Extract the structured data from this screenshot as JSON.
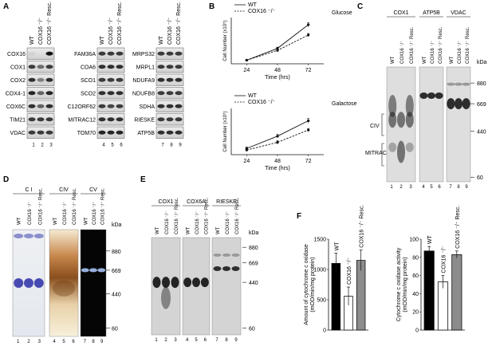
{
  "panels": {
    "A": {
      "letter": "A",
      "col_groups": [
        [
          "WT",
          "COX16 ⁻/⁻",
          "COX16 ⁻/⁻ Resc."
        ],
        [
          "WT",
          "COX16 ⁻/⁻",
          "COX16 ⁻/⁻ Resc."
        ],
        [
          "WT",
          "COX16 ⁻/⁻",
          "COX16 ⁻/⁻ Resc."
        ]
      ],
      "blot1_labels": [
        "COX16",
        "COX1",
        "COX2",
        "COX4-1",
        "COX6C",
        "TIM21",
        "VDAC"
      ],
      "blot2_labels": [
        "FAM36A",
        "COA6",
        "SCO1",
        "SCO2",
        "C12ORF62",
        "MITRAC12",
        "TOM70"
      ],
      "blot3_labels": [
        "MRPS32",
        "MRPL1",
        "NDUFA9",
        "NDUFB8",
        "SDHA",
        "RIESKE",
        "ATP5B"
      ],
      "lanes": [
        [
          "1",
          "2",
          "3"
        ],
        [
          "4",
          "5",
          "6"
        ],
        [
          "7",
          "8",
          "9"
        ]
      ]
    },
    "B": {
      "letter": "B",
      "chart_data": [
        {
          "type": "line",
          "title": "Glucose",
          "xlabel": "Time (hrs)",
          "ylabel": "Cell Number (x10⁵)",
          "x": [
            24,
            48,
            72
          ],
          "xlim": [
            12,
            84
          ],
          "ylim": [
            0,
            4.5
          ],
          "series": [
            {
              "name": "WT",
              "values": [
                0.35,
                1.5,
                3.8
              ],
              "errors": [
                0.05,
                0.12,
                0.2
              ],
              "style": "solid"
            },
            {
              "name": "COX16 ⁻/⁻",
              "values": [
                0.35,
                1.3,
                2.8
              ],
              "errors": [
                0.05,
                0.1,
                0.15
              ],
              "style": "dashed"
            }
          ]
        },
        {
          "type": "line",
          "title": "Galactose",
          "xlabel": "Time (hrs)",
          "ylabel": "Cell Number (x10⁵)",
          "x": [
            24,
            48,
            72
          ],
          "xlim": [
            12,
            84
          ],
          "ylim": [
            0,
            3
          ],
          "series": [
            {
              "name": "WT",
              "values": [
                0.4,
                1.2,
                2.2
              ],
              "errors": [
                0.1,
                0.12,
                0.15
              ],
              "style": "solid"
            },
            {
              "name": "COX16 ⁻/⁻",
              "values": [
                0.3,
                0.8,
                1.6
              ],
              "errors": [
                0.05,
                0.12,
                0.1
              ],
              "style": "dashed"
            }
          ]
        }
      ]
    },
    "C": {
      "letter": "C",
      "group_titles": [
        "COX1",
        "ATP5B",
        "VDAC"
      ],
      "col_labels": [
        "WT",
        "COX16 ⁻/⁻",
        "COX16 ⁻/⁻ Resc."
      ],
      "kda_label": "kDa",
      "markers": [
        "880",
        "669",
        "440",
        "60"
      ],
      "bands": [
        "CIV",
        "MITRAC"
      ],
      "lanes": [
        [
          "1",
          "2",
          "3"
        ],
        [
          "4",
          "5",
          "6"
        ],
        [
          "7",
          "8",
          "9"
        ]
      ]
    },
    "D": {
      "letter": "D",
      "group_titles": [
        "C I",
        "CIV",
        "CV"
      ],
      "col_labels": [
        "WT",
        "COX16 ⁻/⁻",
        "COX16 ⁻/⁻ Resc."
      ],
      "kda_label": "kDa",
      "markers": [
        "880",
        "669",
        "440",
        "60"
      ],
      "lanes": [
        [
          "1",
          "2",
          "3"
        ],
        [
          "4",
          "5",
          "6"
        ],
        [
          "7",
          "8",
          "9"
        ]
      ]
    },
    "E": {
      "letter": "E",
      "group_titles": [
        "COX1",
        "COX6A",
        "RIESKE"
      ],
      "col_labels": [
        "WT",
        "COX16 ⁻/⁻",
        "COX16 ⁻/⁻ Resc."
      ],
      "kda_label": "kDa",
      "markers": [
        "880",
        "669",
        "440",
        "60"
      ],
      "lanes": [
        [
          "1",
          "2",
          "3"
        ],
        [
          "4",
          "5",
          "6"
        ],
        [
          "7",
          "8",
          "9"
        ]
      ]
    },
    "F": {
      "letter": "F",
      "chart_data": [
        {
          "type": "bar",
          "categories": [
            "WT",
            "COX16 ⁻/⁻",
            "COX16 ⁻/⁻ Resc."
          ],
          "values": [
            1100,
            560,
            1150
          ],
          "errors": [
            170,
            150,
            170
          ],
          "colors": [
            "#000000",
            "#ffffff",
            "#8c8c8c"
          ],
          "ylabel": "Amount of cytochrome c oxidase\n(mOD/min/mg protein)",
          "yticks": [
            0,
            500,
            1000,
            1500
          ],
          "ylim": [
            0,
            1500
          ]
        },
        {
          "type": "bar",
          "categories": [
            "WT",
            "COX16 ⁻/⁻",
            "COX16 ⁻/⁻ Resc."
          ],
          "values": [
            87,
            53,
            83
          ],
          "errors": [
            5,
            7,
            4
          ],
          "colors": [
            "#000000",
            "#ffffff",
            "#8c8c8c"
          ],
          "ylabel": "Cytochrome c oxidase activity\n(mOD/min/mg protein)",
          "yticks": [
            0,
            20,
            40,
            60,
            80,
            100
          ],
          "ylim": [
            0,
            100
          ]
        }
      ]
    }
  }
}
